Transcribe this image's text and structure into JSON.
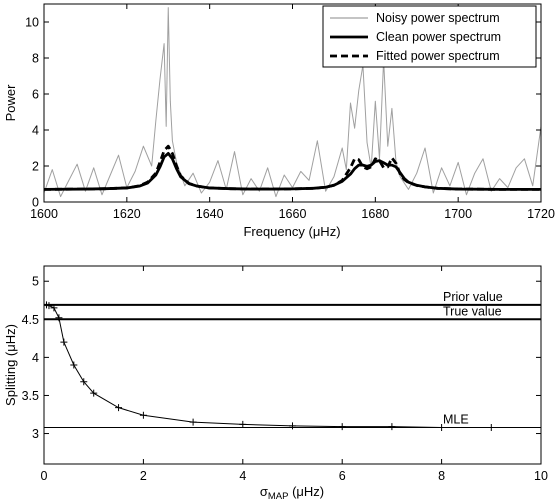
{
  "chart_data": [
    {
      "type": "line",
      "xlabel": "Frequency (μHz)",
      "ylabel": "Power",
      "xlim": [
        1600,
        1720
      ],
      "ylim": [
        0,
        11
      ],
      "xticks": [
        1600,
        1620,
        1640,
        1660,
        1680,
        1700,
        1720
      ],
      "yticks": [
        0,
        2,
        4,
        6,
        8,
        10
      ],
      "legend_position": "top-right",
      "series": [
        {
          "name": "Noisy power spectrum",
          "style": "thin-gray",
          "color": "#a0a0a0",
          "x": [
            1600,
            1602,
            1604,
            1606,
            1608,
            1610,
            1612,
            1614,
            1616,
            1618,
            1620,
            1622,
            1624,
            1626,
            1627,
            1628,
            1629,
            1629.5,
            1630,
            1630.5,
            1631,
            1632,
            1634,
            1636,
            1638,
            1640,
            1642,
            1644,
            1646,
            1648,
            1650,
            1652,
            1654,
            1656,
            1658,
            1660,
            1662,
            1664,
            1666,
            1668,
            1670,
            1672,
            1673,
            1674,
            1675,
            1676,
            1677,
            1678,
            1679,
            1680,
            1681,
            1682,
            1683,
            1684,
            1685,
            1686,
            1688,
            1690,
            1692,
            1694,
            1696,
            1698,
            1700,
            1702,
            1704,
            1706,
            1708,
            1710,
            1712,
            1714,
            1716,
            1718,
            1720
          ],
          "y": [
            0.5,
            1.8,
            0.3,
            1.2,
            2.1,
            0.6,
            1.9,
            0.4,
            1.5,
            2.6,
            0.8,
            1.7,
            3.1,
            2.0,
            4.5,
            6.8,
            8.8,
            4.2,
            10.8,
            5.6,
            3.4,
            2.2,
            0.9,
            1.6,
            0.5,
            1.1,
            2.3,
            0.7,
            2.8,
            0.4,
            1.3,
            0.6,
            1.9,
            0.3,
            1.5,
            0.8,
            1.7,
            1.2,
            3.4,
            0.6,
            1.4,
            3.0,
            1.8,
            5.5,
            4.1,
            6.2,
            7.6,
            3.3,
            1.9,
            5.6,
            2.4,
            7.9,
            3.1,
            5.2,
            2.2,
            1.4,
            0.7,
            1.6,
            3.0,
            0.5,
            1.9,
            0.9,
            2.2,
            0.4,
            1.6,
            2.4,
            0.6,
            1.3,
            0.8,
            1.9,
            2.4,
            0.9,
            4.2
          ]
        },
        {
          "name": "Clean power spectrum",
          "style": "thick-solid",
          "color": "#000000",
          "x": [
            1600,
            1610,
            1615,
            1620,
            1623,
            1625,
            1627,
            1628,
            1629,
            1630,
            1631,
            1632,
            1633,
            1635,
            1637,
            1640,
            1645,
            1650,
            1655,
            1660,
            1665,
            1668,
            1670,
            1672,
            1674,
            1675,
            1676,
            1677,
            1678,
            1679,
            1680,
            1681,
            1682,
            1683,
            1684,
            1685,
            1686,
            1687,
            1688,
            1690,
            1692,
            1695,
            1700,
            1710,
            1720
          ],
          "y": [
            0.7,
            0.72,
            0.74,
            0.78,
            0.88,
            1.05,
            1.5,
            1.95,
            2.5,
            2.7,
            2.4,
            1.85,
            1.4,
            1.02,
            0.88,
            0.78,
            0.74,
            0.72,
            0.72,
            0.73,
            0.76,
            0.82,
            0.93,
            1.15,
            1.55,
            1.85,
            2.05,
            2.05,
            1.98,
            2.05,
            2.25,
            2.3,
            2.18,
            2.05,
            2.05,
            1.95,
            1.62,
            1.3,
            1.1,
            0.93,
            0.84,
            0.76,
            0.72,
            0.7,
            0.7
          ]
        },
        {
          "name": "Fitted power spectrum",
          "style": "thick-dashed",
          "color": "#000000",
          "x": [
            1600,
            1610,
            1615,
            1620,
            1623,
            1625,
            1627,
            1628,
            1629,
            1630,
            1631,
            1632,
            1633,
            1635,
            1637,
            1640,
            1645,
            1650,
            1655,
            1660,
            1665,
            1668,
            1670,
            1672,
            1674,
            1675,
            1676,
            1677,
            1678,
            1679,
            1680,
            1681,
            1682,
            1683,
            1684,
            1685,
            1686,
            1687,
            1688,
            1690,
            1692,
            1695,
            1700,
            1710,
            1720
          ],
          "y": [
            0.7,
            0.72,
            0.74,
            0.78,
            0.9,
            1.1,
            1.6,
            2.2,
            2.85,
            3.1,
            2.7,
            2.0,
            1.45,
            1.03,
            0.88,
            0.78,
            0.74,
            0.72,
            0.72,
            0.73,
            0.76,
            0.82,
            0.93,
            1.2,
            1.9,
            2.4,
            2.35,
            1.95,
            1.85,
            1.95,
            2.4,
            2.3,
            1.9,
            1.95,
            2.45,
            2.15,
            1.55,
            1.25,
            1.08,
            0.92,
            0.84,
            0.76,
            0.72,
            0.7,
            0.7
          ]
        }
      ]
    },
    {
      "type": "line",
      "xlabel": "σ",
      "xlabel_subscript": "MAP",
      "xlabel_suffix": " (μHz)",
      "ylabel": "Splitting (μHz)",
      "xlim": [
        0,
        10
      ],
      "ylim": [
        2.6,
        5.2
      ],
      "xticks": [
        0,
        2,
        4,
        6,
        8,
        10
      ],
      "yticks": [
        3,
        3.5,
        4,
        4.5,
        5
      ],
      "series": [
        {
          "name": "",
          "style": "thin-solid-plus-markers",
          "color": "#000000",
          "x": [
            0.05,
            0.1,
            0.2,
            0.3,
            0.4,
            0.6,
            0.8,
            1.0,
            1.5,
            2.0,
            3.0,
            4.0,
            5.0,
            6.0,
            7.0,
            8.0,
            9.0,
            10.0
          ],
          "y": [
            4.69,
            4.68,
            4.65,
            4.52,
            4.2,
            3.9,
            3.68,
            3.53,
            3.34,
            3.24,
            3.15,
            3.12,
            3.1,
            3.09,
            3.09,
            3.08,
            3.08,
            3.08
          ]
        }
      ],
      "reference_lines": [
        {
          "label": "Prior value",
          "y": 4.69,
          "style": "thick"
        },
        {
          "label": "True value",
          "y": 4.5,
          "style": "thick"
        },
        {
          "label": "MLE",
          "y": 3.08,
          "style": "thin"
        }
      ]
    }
  ]
}
